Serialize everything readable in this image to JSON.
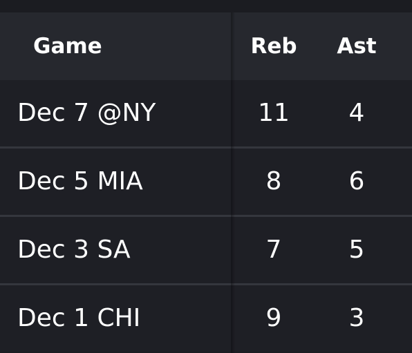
{
  "table": {
    "headers": {
      "game": "Game",
      "reb": "Reb",
      "ast": "Ast"
    },
    "rows": [
      {
        "game": "Dec 7 @NY",
        "reb": "11",
        "ast": "4"
      },
      {
        "game": "Dec 5 MIA",
        "reb": "8",
        "ast": "6"
      },
      {
        "game": "Dec 3 SA",
        "reb": "7",
        "ast": "5"
      },
      {
        "game": "Dec 1 CHI",
        "reb": "9",
        "ast": "3"
      }
    ]
  },
  "colors": {
    "background": "#1c1d22",
    "header_background": "#26282e",
    "row_background": "#1e1f25",
    "row_divider": "#34363d",
    "text": "#ffffff"
  }
}
